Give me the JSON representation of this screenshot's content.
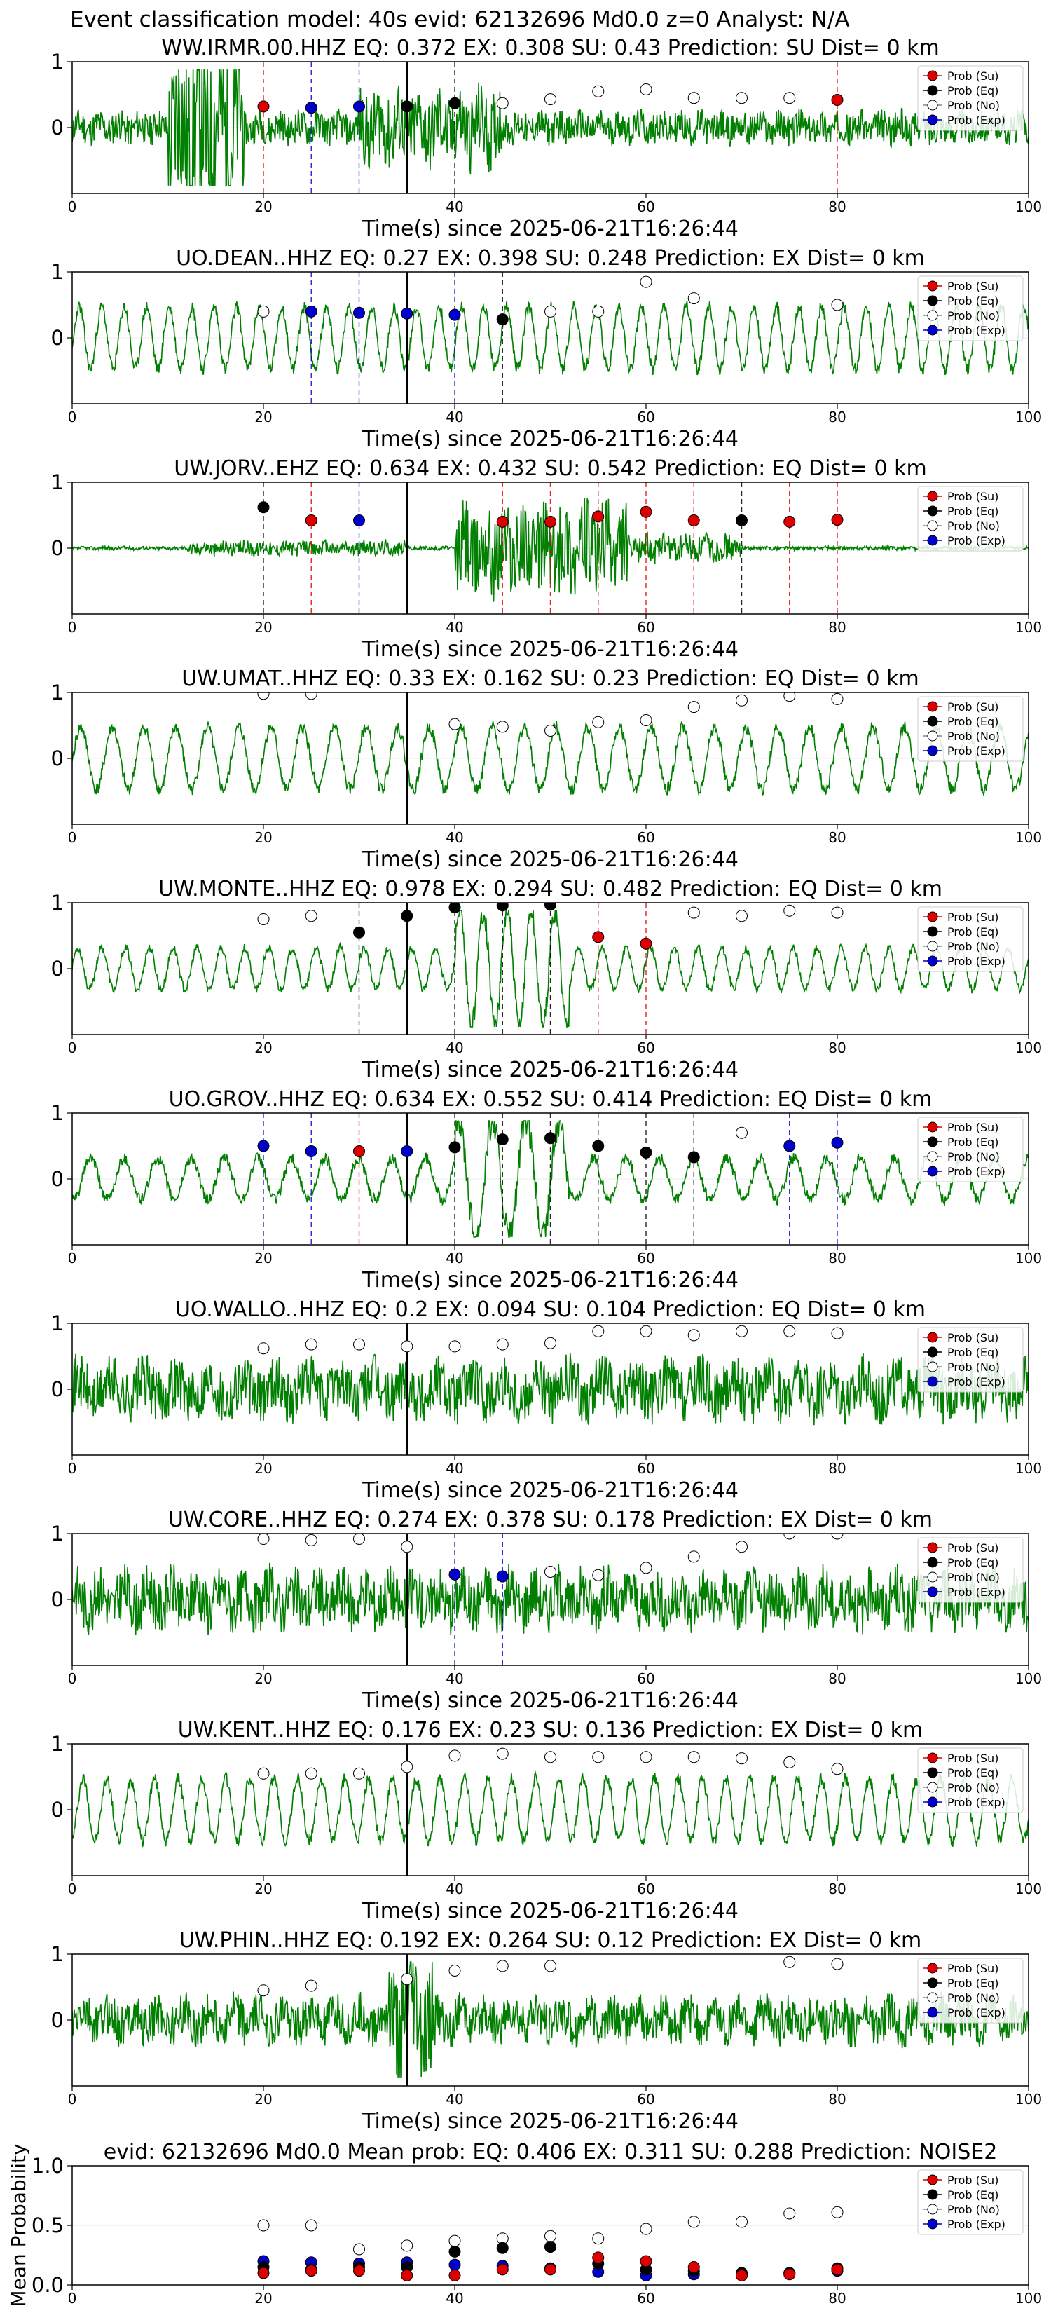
{
  "page_title": "Event classification model: 40s evid: 62132696 Md0.0 z=0 Analyst: N/A",
  "legend": {
    "entries": [
      {
        "label": "Prob (Su)",
        "color": "#dd0000",
        "key": "su"
      },
      {
        "label": "Prob (Eq)",
        "color": "#000000",
        "key": "eq"
      },
      {
        "label": "Prob (No)",
        "color": "#ffffff",
        "key": "no"
      },
      {
        "label": "Prob (Exp)",
        "color": "#0000cc",
        "key": "exp"
      }
    ]
  },
  "colors": {
    "waveform": "#007f00",
    "su": "#dd0000",
    "eq": "#000000",
    "no": "#ffffff",
    "exp": "#0000cc",
    "pick": "#000000"
  },
  "chart_data": [
    {
      "type": "line",
      "title": "WW.IRMR.00.HHZ   EQ: 0.372   EX: 0.308   SU: 0.43   Prediction: SU    Dist= 0 km",
      "xlabel": "Time(s) since 2025-06-21T16:26:44",
      "ylabel": "",
      "xlim": [
        0,
        100
      ],
      "ylim": [
        -1,
        1
      ],
      "xticks": [
        0,
        20,
        40,
        60,
        80,
        100
      ],
      "yticks": [
        0,
        1
      ],
      "pick_time": 35,
      "noise": 0.35,
      "style": "burst-early",
      "seed": 11,
      "points": [
        {
          "x": 20,
          "y": 0.32,
          "class": "su"
        },
        {
          "x": 25,
          "y": 0.3,
          "class": "exp"
        },
        {
          "x": 30,
          "y": 0.32,
          "class": "exp"
        },
        {
          "x": 35,
          "y": 0.32,
          "class": "eq"
        },
        {
          "x": 40,
          "y": 0.37,
          "class": "eq"
        },
        {
          "x": 45,
          "y": 0.37,
          "class": "no"
        },
        {
          "x": 50,
          "y": 0.43,
          "class": "no"
        },
        {
          "x": 55,
          "y": 0.55,
          "class": "no"
        },
        {
          "x": 60,
          "y": 0.58,
          "class": "no"
        },
        {
          "x": 65,
          "y": 0.45,
          "class": "no"
        },
        {
          "x": 70,
          "y": 0.45,
          "class": "no"
        },
        {
          "x": 75,
          "y": 0.45,
          "class": "no"
        },
        {
          "x": 80,
          "y": 0.42,
          "class": "su"
        }
      ]
    },
    {
      "type": "line",
      "title": "UO.DEAN..HHZ   EQ: 0.27   EX: 0.398   SU: 0.248   Prediction: EX    Dist= 0 km",
      "xlabel": "Time(s) since 2025-06-21T16:26:44",
      "ylabel": "",
      "xlim": [
        0,
        100
      ],
      "ylim": [
        -1,
        1
      ],
      "xticks": [
        0,
        20,
        40,
        60,
        80,
        100
      ],
      "yticks": [
        0,
        1
      ],
      "pick_time": 35,
      "noise": 0.15,
      "style": "oscillate",
      "seed": 23,
      "points": [
        {
          "x": 20,
          "y": 0.4,
          "class": "no"
        },
        {
          "x": 25,
          "y": 0.4,
          "class": "exp"
        },
        {
          "x": 30,
          "y": 0.38,
          "class": "exp"
        },
        {
          "x": 35,
          "y": 0.37,
          "class": "exp"
        },
        {
          "x": 40,
          "y": 0.35,
          "class": "exp"
        },
        {
          "x": 45,
          "y": 0.28,
          "class": "eq"
        },
        {
          "x": 50,
          "y": 0.4,
          "class": "no"
        },
        {
          "x": 55,
          "y": 0.4,
          "class": "no"
        },
        {
          "x": 60,
          "y": 0.85,
          "class": "no"
        },
        {
          "x": 65,
          "y": 0.6,
          "class": "no"
        },
        {
          "x": 80,
          "y": 0.5,
          "class": "no"
        }
      ]
    },
    {
      "type": "line",
      "title": "UW.JORV..EHZ   EQ: 0.634   EX: 0.432   SU: 0.542   Prediction: EQ    Dist= 0 km",
      "xlabel": "Time(s) since 2025-06-21T16:26:44",
      "ylabel": "",
      "xlim": [
        0,
        100
      ],
      "ylim": [
        -1,
        1
      ],
      "xticks": [
        0,
        20,
        40,
        60,
        80,
        100
      ],
      "yticks": [
        0,
        1
      ],
      "pick_time": 35,
      "noise": 0.02,
      "style": "burst-late",
      "seed": 37,
      "points": [
        {
          "x": 20,
          "y": 0.62,
          "class": "eq"
        },
        {
          "x": 25,
          "y": 0.42,
          "class": "su"
        },
        {
          "x": 30,
          "y": 0.42,
          "class": "exp"
        },
        {
          "x": 45,
          "y": 0.4,
          "class": "su"
        },
        {
          "x": 50,
          "y": 0.4,
          "class": "su"
        },
        {
          "x": 55,
          "y": 0.48,
          "class": "su"
        },
        {
          "x": 60,
          "y": 0.55,
          "class": "su"
        },
        {
          "x": 65,
          "y": 0.42,
          "class": "su"
        },
        {
          "x": 70,
          "y": 0.42,
          "class": "eq"
        },
        {
          "x": 75,
          "y": 0.4,
          "class": "su"
        },
        {
          "x": 80,
          "y": 0.43,
          "class": "su"
        }
      ]
    },
    {
      "type": "line",
      "title": "UW.UMAT..HHZ   EQ: 0.33   EX: 0.162   SU: 0.23   Prediction: EQ    Dist= 0 km",
      "xlabel": "Time(s) since 2025-06-21T16:26:44",
      "ylabel": "",
      "xlim": [
        0,
        100
      ],
      "ylim": [
        -1,
        1
      ],
      "xticks": [
        0,
        20,
        40,
        60,
        80,
        100
      ],
      "yticks": [
        0,
        1
      ],
      "pick_time": 35,
      "noise": 0.15,
      "style": "oscillate",
      "seed": 41,
      "points": [
        {
          "x": 20,
          "y": 0.98,
          "class": "no"
        },
        {
          "x": 25,
          "y": 0.98,
          "class": "no"
        },
        {
          "x": 40,
          "y": 0.52,
          "class": "no"
        },
        {
          "x": 45,
          "y": 0.48,
          "class": "no"
        },
        {
          "x": 50,
          "y": 0.42,
          "class": "no"
        },
        {
          "x": 55,
          "y": 0.55,
          "class": "no"
        },
        {
          "x": 60,
          "y": 0.58,
          "class": "no"
        },
        {
          "x": 65,
          "y": 0.78,
          "class": "no"
        },
        {
          "x": 70,
          "y": 0.88,
          "class": "no"
        },
        {
          "x": 75,
          "y": 0.95,
          "class": "no"
        },
        {
          "x": 80,
          "y": 0.9,
          "class": "no"
        }
      ]
    },
    {
      "type": "line",
      "title": "UW.MONTE..HHZ   EQ: 0.978   EX: 0.294   SU: 0.482   Prediction: EQ    Dist= 0 km",
      "xlabel": "Time(s) since 2025-06-21T16:26:44",
      "ylabel": "",
      "xlim": [
        0,
        100
      ],
      "ylim": [
        -1,
        1
      ],
      "xticks": [
        0,
        20,
        40,
        60,
        80,
        100
      ],
      "yticks": [
        0,
        1
      ],
      "pick_time": 35,
      "noise": 0.15,
      "style": "oscillate-burst",
      "seed": 53,
      "points": [
        {
          "x": 20,
          "y": 0.75,
          "class": "no"
        },
        {
          "x": 25,
          "y": 0.8,
          "class": "no"
        },
        {
          "x": 30,
          "y": 0.55,
          "class": "eq"
        },
        {
          "x": 35,
          "y": 0.8,
          "class": "eq"
        },
        {
          "x": 40,
          "y": 0.93,
          "class": "eq"
        },
        {
          "x": 45,
          "y": 0.96,
          "class": "eq"
        },
        {
          "x": 50,
          "y": 0.97,
          "class": "eq"
        },
        {
          "x": 55,
          "y": 0.48,
          "class": "su"
        },
        {
          "x": 60,
          "y": 0.38,
          "class": "su"
        },
        {
          "x": 65,
          "y": 0.85,
          "class": "no"
        },
        {
          "x": 70,
          "y": 0.8,
          "class": "no"
        },
        {
          "x": 75,
          "y": 0.88,
          "class": "no"
        },
        {
          "x": 80,
          "y": 0.85,
          "class": "no"
        }
      ]
    },
    {
      "type": "line",
      "title": "UO.GROV..HHZ   EQ: 0.634   EX: 0.552   SU: 0.414   Prediction: EQ    Dist= 0 km",
      "xlabel": "Time(s) since 2025-06-21T16:26:44",
      "ylabel": "",
      "xlim": [
        0,
        100
      ],
      "ylim": [
        -1,
        1
      ],
      "xticks": [
        0,
        20,
        40,
        60,
        80,
        100
      ],
      "yticks": [
        0,
        1
      ],
      "pick_time": 35,
      "noise": 0.2,
      "style": "oscillate-burst",
      "seed": 61,
      "points": [
        {
          "x": 20,
          "y": 0.5,
          "class": "exp"
        },
        {
          "x": 25,
          "y": 0.42,
          "class": "exp"
        },
        {
          "x": 30,
          "y": 0.42,
          "class": "su"
        },
        {
          "x": 35,
          "y": 0.42,
          "class": "exp"
        },
        {
          "x": 40,
          "y": 0.48,
          "class": "eq"
        },
        {
          "x": 45,
          "y": 0.6,
          "class": "eq"
        },
        {
          "x": 50,
          "y": 0.62,
          "class": "eq"
        },
        {
          "x": 55,
          "y": 0.5,
          "class": "eq"
        },
        {
          "x": 60,
          "y": 0.4,
          "class": "eq"
        },
        {
          "x": 65,
          "y": 0.33,
          "class": "eq"
        },
        {
          "x": 70,
          "y": 0.7,
          "class": "no"
        },
        {
          "x": 75,
          "y": 0.5,
          "class": "exp"
        },
        {
          "x": 80,
          "y": 0.55,
          "class": "exp"
        }
      ]
    },
    {
      "type": "line",
      "title": "UO.WALLO..HHZ   EQ: 0.2   EX: 0.094   SU: 0.104   Prediction: EQ    Dist= 0 km",
      "xlabel": "Time(s) since 2025-06-21T16:26:44",
      "ylabel": "",
      "xlim": [
        0,
        100
      ],
      "ylim": [
        -1,
        1
      ],
      "xticks": [
        0,
        20,
        40,
        60,
        80,
        100
      ],
      "yticks": [
        0,
        1
      ],
      "pick_time": 35,
      "noise": 0.55,
      "style": "noise",
      "seed": 71,
      "points": [
        {
          "x": 20,
          "y": 0.62,
          "class": "no"
        },
        {
          "x": 25,
          "y": 0.68,
          "class": "no"
        },
        {
          "x": 30,
          "y": 0.68,
          "class": "no"
        },
        {
          "x": 35,
          "y": 0.65,
          "class": "no"
        },
        {
          "x": 40,
          "y": 0.65,
          "class": "no"
        },
        {
          "x": 45,
          "y": 0.68,
          "class": "no"
        },
        {
          "x": 50,
          "y": 0.7,
          "class": "no"
        },
        {
          "x": 55,
          "y": 0.88,
          "class": "no"
        },
        {
          "x": 60,
          "y": 0.88,
          "class": "no"
        },
        {
          "x": 65,
          "y": 0.82,
          "class": "no"
        },
        {
          "x": 70,
          "y": 0.88,
          "class": "no"
        },
        {
          "x": 75,
          "y": 0.88,
          "class": "no"
        },
        {
          "x": 80,
          "y": 0.85,
          "class": "no"
        }
      ]
    },
    {
      "type": "line",
      "title": "UW.CORE..HHZ   EQ: 0.274   EX: 0.378   SU: 0.178   Prediction: EX    Dist= 0 km",
      "xlabel": "Time(s) since 2025-06-21T16:26:44",
      "ylabel": "",
      "xlim": [
        0,
        100
      ],
      "ylim": [
        -1,
        1
      ],
      "xticks": [
        0,
        20,
        40,
        60,
        80,
        100
      ],
      "yticks": [
        0,
        1
      ],
      "pick_time": 35,
      "noise": 0.45,
      "style": "noise",
      "seed": 83,
      "points": [
        {
          "x": 20,
          "y": 0.92,
          "class": "no"
        },
        {
          "x": 25,
          "y": 0.9,
          "class": "no"
        },
        {
          "x": 30,
          "y": 0.92,
          "class": "no"
        },
        {
          "x": 35,
          "y": 0.8,
          "class": "no"
        },
        {
          "x": 40,
          "y": 0.38,
          "class": "exp"
        },
        {
          "x": 45,
          "y": 0.35,
          "class": "exp"
        },
        {
          "x": 50,
          "y": 0.42,
          "class": "no"
        },
        {
          "x": 55,
          "y": 0.37,
          "class": "no"
        },
        {
          "x": 60,
          "y": 0.48,
          "class": "no"
        },
        {
          "x": 65,
          "y": 0.65,
          "class": "no"
        },
        {
          "x": 70,
          "y": 0.8,
          "class": "no"
        },
        {
          "x": 75,
          "y": 1.0,
          "class": "no"
        },
        {
          "x": 80,
          "y": 1.0,
          "class": "no"
        }
      ]
    },
    {
      "type": "line",
      "title": "UW.KENT..HHZ   EQ: 0.176   EX: 0.23   SU: 0.136   Prediction: EX    Dist= 0 km",
      "xlabel": "Time(s) since 2025-06-21T16:26:44",
      "ylabel": "",
      "xlim": [
        0,
        100
      ],
      "ylim": [
        -1,
        1
      ],
      "xticks": [
        0,
        20,
        40,
        60,
        80,
        100
      ],
      "yticks": [
        0,
        1
      ],
      "pick_time": 35,
      "noise": 0.15,
      "style": "oscillate",
      "seed": 97,
      "points": [
        {
          "x": 20,
          "y": 0.55,
          "class": "no"
        },
        {
          "x": 25,
          "y": 0.55,
          "class": "no"
        },
        {
          "x": 30,
          "y": 0.55,
          "class": "no"
        },
        {
          "x": 35,
          "y": 0.65,
          "class": "no"
        },
        {
          "x": 40,
          "y": 0.82,
          "class": "no"
        },
        {
          "x": 45,
          "y": 0.85,
          "class": "no"
        },
        {
          "x": 50,
          "y": 0.8,
          "class": "no"
        },
        {
          "x": 55,
          "y": 0.8,
          "class": "no"
        },
        {
          "x": 60,
          "y": 0.8,
          "class": "no"
        },
        {
          "x": 65,
          "y": 0.8,
          "class": "no"
        },
        {
          "x": 70,
          "y": 0.78,
          "class": "no"
        },
        {
          "x": 75,
          "y": 0.72,
          "class": "no"
        },
        {
          "x": 80,
          "y": 0.62,
          "class": "no"
        }
      ]
    },
    {
      "type": "line",
      "title": "UW.PHIN..HHZ   EQ: 0.192   EX: 0.264   SU: 0.12   Prediction: EX    Dist= 0 km",
      "xlabel": "Time(s) since 2025-06-21T16:26:44",
      "ylabel": "",
      "xlim": [
        0,
        100
      ],
      "ylim": [
        -1,
        1
      ],
      "xticks": [
        0,
        20,
        40,
        60,
        80,
        100
      ],
      "yticks": [
        0,
        1
      ],
      "pick_time": 35,
      "noise": 0.4,
      "style": "noise-burst",
      "seed": 103,
      "points": [
        {
          "x": 20,
          "y": 0.45,
          "class": "no"
        },
        {
          "x": 25,
          "y": 0.52,
          "class": "no"
        },
        {
          "x": 35,
          "y": 0.62,
          "class": "no"
        },
        {
          "x": 40,
          "y": 0.75,
          "class": "no"
        },
        {
          "x": 45,
          "y": 0.82,
          "class": "no"
        },
        {
          "x": 50,
          "y": 0.82,
          "class": "no"
        },
        {
          "x": 75,
          "y": 0.88,
          "class": "no"
        },
        {
          "x": 80,
          "y": 0.85,
          "class": "no"
        }
      ]
    },
    {
      "type": "scatter",
      "title": "evid: 62132696   Md0.0   Mean prob:   EQ: 0.406   EX: 0.311   SU: 0.288   Prediction: NOISE2",
      "xlabel": "",
      "ylabel": "Mean Probability",
      "xlim": [
        0,
        100
      ],
      "ylim": [
        0,
        1
      ],
      "xticks": [
        0,
        20,
        40,
        60,
        80,
        100
      ],
      "yticks": [
        0.0,
        0.5,
        1.0
      ],
      "ytick_labels": [
        "0.0",
        "0.5",
        "1.0"
      ],
      "grid": true,
      "legend": "top-right",
      "series": [
        {
          "class": "no",
          "x": [
            20,
            25,
            30,
            35,
            40,
            45,
            50,
            55,
            60,
            65,
            70,
            75,
            80
          ],
          "y": [
            0.5,
            0.5,
            0.3,
            0.33,
            0.37,
            0.39,
            0.41,
            0.39,
            0.47,
            0.53,
            0.53,
            0.6,
            0.61
          ]
        },
        {
          "class": "exp",
          "x": [
            20,
            25,
            30,
            35,
            40,
            45,
            50,
            55,
            60,
            65,
            70,
            75,
            80
          ],
          "y": [
            0.2,
            0.19,
            0.18,
            0.19,
            0.17,
            0.16,
            0.14,
            0.11,
            0.08,
            0.09,
            0.09,
            0.1,
            0.12
          ]
        },
        {
          "class": "eq",
          "x": [
            20,
            25,
            30,
            35,
            40,
            45,
            50,
            55,
            60,
            65,
            70,
            75,
            80
          ],
          "y": [
            0.15,
            0.13,
            0.15,
            0.15,
            0.28,
            0.31,
            0.32,
            0.18,
            0.13,
            0.12,
            0.1,
            0.1,
            0.14
          ]
        },
        {
          "class": "su",
          "x": [
            20,
            25,
            30,
            35,
            40,
            45,
            50,
            55,
            60,
            65,
            70,
            75,
            80
          ],
          "y": [
            0.1,
            0.12,
            0.12,
            0.08,
            0.08,
            0.13,
            0.13,
            0.23,
            0.2,
            0.15,
            0.08,
            0.09,
            0.13
          ]
        }
      ]
    }
  ]
}
